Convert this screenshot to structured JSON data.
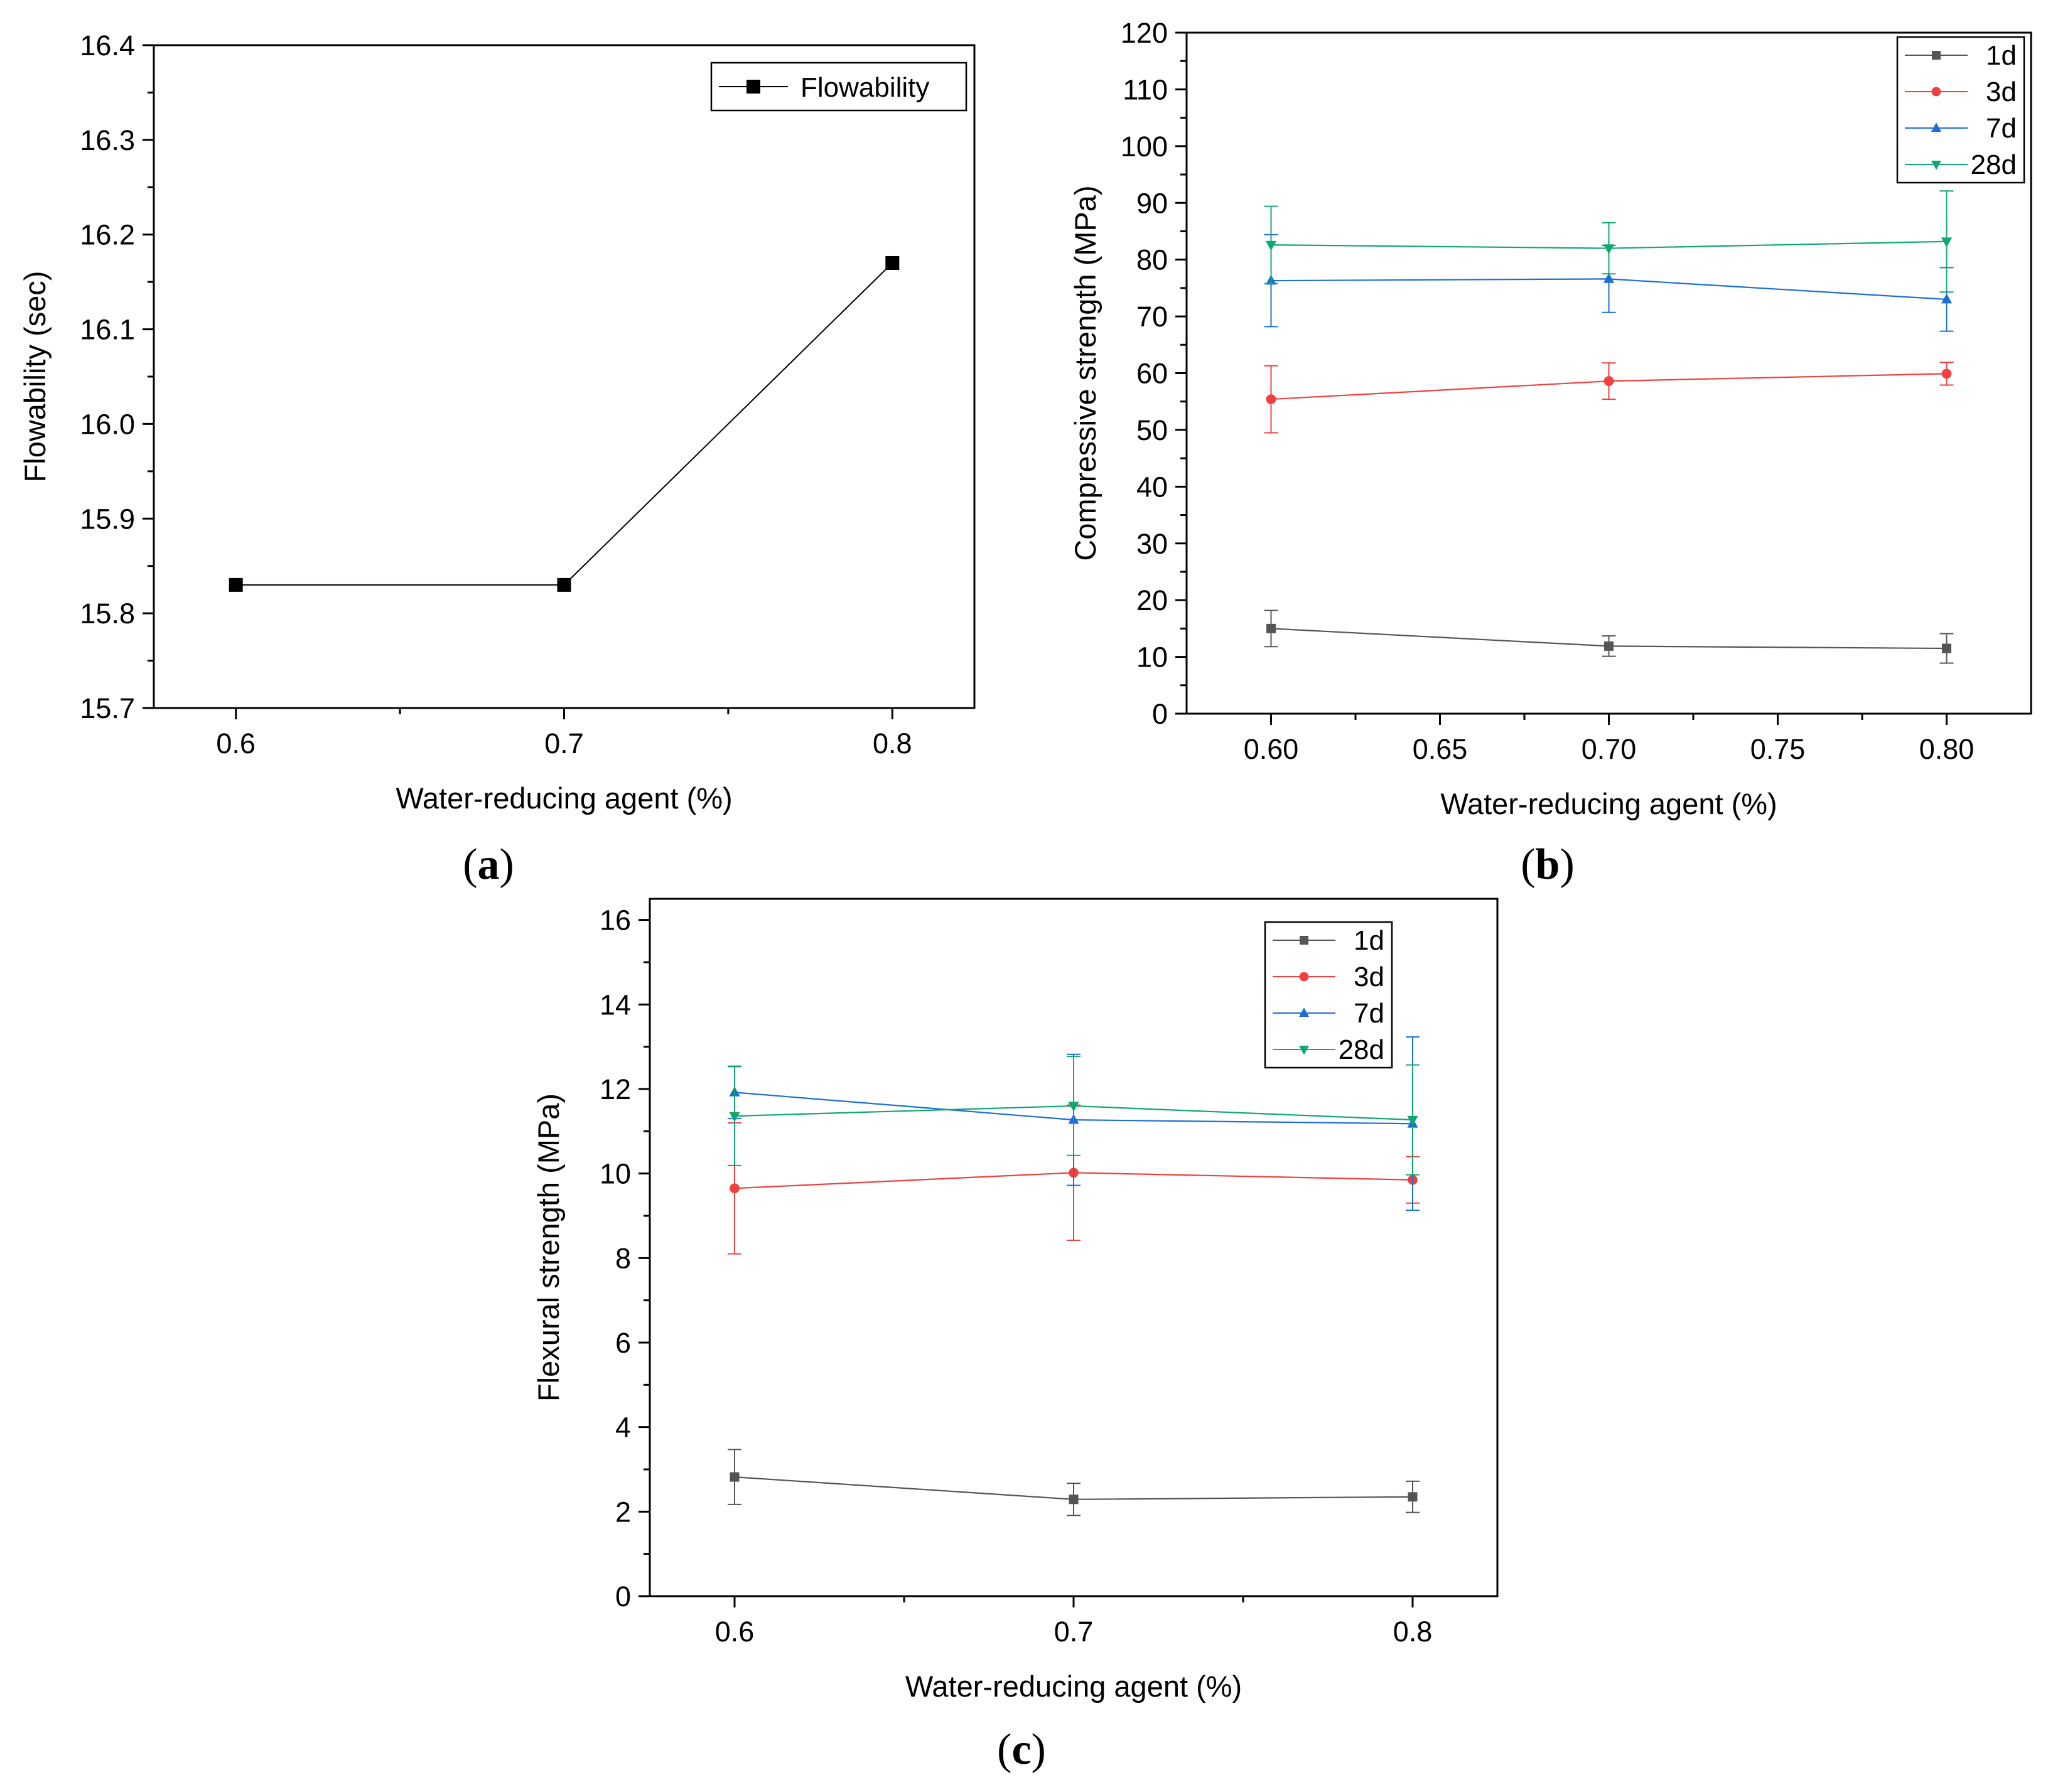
{
  "chart_data": [
    {
      "id": "a",
      "type": "line",
      "panel_label": "a",
      "xlabel": "Water-reducing agent (%)",
      "ylabel": "Flowability (sec)",
      "xlim": [
        0.575,
        0.825
      ],
      "ylim": [
        15.7,
        16.4
      ],
      "xticks": [
        0.6,
        0.7,
        0.8
      ],
      "xtick_labels": [
        "0.6",
        "0.7",
        "0.8"
      ],
      "xminor": [
        0.65,
        0.75
      ],
      "yticks": [
        15.7,
        15.8,
        15.9,
        16.0,
        16.1,
        16.2,
        16.3,
        16.4
      ],
      "ytick_labels": [
        "15.7",
        "15.8",
        "15.9",
        "16.0",
        "16.1",
        "16.2",
        "16.3",
        "16.4"
      ],
      "yminor": [
        15.75,
        15.85,
        15.95,
        16.05,
        16.15,
        16.25,
        16.35
      ],
      "legend": "top-right",
      "grid": false,
      "series": [
        {
          "name": "Flowability",
          "color": "#000000",
          "marker": "square",
          "x": [
            0.6,
            0.7,
            0.8
          ],
          "y": [
            15.83,
            15.83,
            16.17
          ]
        }
      ]
    },
    {
      "id": "b",
      "type": "line",
      "panel_label": "b",
      "xlabel": "Water-reducing agent (%)",
      "ylabel": "Compressive strength (MPa)",
      "xlim": [
        0.575,
        0.825
      ],
      "ylim": [
        0,
        120
      ],
      "xticks": [
        0.6,
        0.65,
        0.7,
        0.75,
        0.8
      ],
      "xtick_labels": [
        "0.60",
        "0.65",
        "0.70",
        "0.75",
        "0.80"
      ],
      "xminor": [
        0.625,
        0.675,
        0.725,
        0.775
      ],
      "yticks": [
        0,
        10,
        20,
        30,
        40,
        50,
        60,
        70,
        80,
        90,
        100,
        110,
        120
      ],
      "ytick_labels": [
        "0",
        "10",
        "20",
        "30",
        "40",
        "50",
        "60",
        "70",
        "80",
        "90",
        "100",
        "110",
        "120"
      ],
      "yminor": [
        5,
        15,
        25,
        35,
        45,
        55,
        65,
        75,
        85,
        95,
        105,
        115
      ],
      "legend": "top-right",
      "grid": false,
      "series": [
        {
          "name": "1d",
          "color": "#555555",
          "marker": "square",
          "x": [
            0.6,
            0.7,
            0.8
          ],
          "y": [
            15.0,
            11.9,
            11.5
          ],
          "err": [
            3.2,
            1.8,
            2.6
          ]
        },
        {
          "name": "3d",
          "color": "#f04040",
          "marker": "circle",
          "x": [
            0.6,
            0.7,
            0.8
          ],
          "y": [
            55.4,
            58.6,
            59.9
          ],
          "err": [
            5.9,
            3.2,
            2.0
          ]
        },
        {
          "name": "7d",
          "color": "#1b6fd4",
          "marker": "triangle-up",
          "x": [
            0.6,
            0.7,
            0.8
          ],
          "y": [
            76.3,
            76.6,
            73.0
          ],
          "err": [
            8.1,
            5.9,
            5.6
          ]
        },
        {
          "name": "28d",
          "color": "#10a870",
          "marker": "triangle-down",
          "x": [
            0.6,
            0.7,
            0.8
          ],
          "y": [
            82.6,
            82.0,
            83.2
          ],
          "err": [
            6.8,
            4.5,
            8.9
          ]
        }
      ]
    },
    {
      "id": "c",
      "type": "line",
      "panel_label": "c",
      "xlabel": "Water-reducing agent (%)",
      "ylabel": "Flexural strength (MPa)",
      "xlim": [
        0.575,
        0.825
      ],
      "ylim": [
        0,
        16.5
      ],
      "xticks": [
        0.6,
        0.7,
        0.8
      ],
      "xtick_labels": [
        "0.6",
        "0.7",
        "0.8"
      ],
      "xminor": [
        0.65,
        0.75
      ],
      "yticks": [
        0,
        2,
        4,
        6,
        8,
        10,
        12,
        14,
        16
      ],
      "ytick_labels": [
        "0",
        "2",
        "4",
        "6",
        "8",
        "10",
        "12",
        "14",
        "16"
      ],
      "yminor": [
        1,
        3,
        5,
        7,
        9,
        11,
        13,
        15
      ],
      "legend": "top-right",
      "grid": false,
      "series": [
        {
          "name": "1d",
          "color": "#555555",
          "marker": "square",
          "x": [
            0.6,
            0.7,
            0.8
          ],
          "y": [
            2.82,
            2.29,
            2.35
          ],
          "err": [
            0.65,
            0.38,
            0.37
          ]
        },
        {
          "name": "3d",
          "color": "#f04040",
          "marker": "circle",
          "x": [
            0.6,
            0.7,
            0.8
          ],
          "y": [
            9.65,
            10.02,
            9.85
          ],
          "err": [
            1.55,
            1.6,
            0.55
          ]
        },
        {
          "name": "7d",
          "color": "#1b6fd4",
          "marker": "triangle-up",
          "x": [
            0.6,
            0.7,
            0.8
          ],
          "y": [
            11.92,
            11.27,
            11.18
          ],
          "err": [
            0.62,
            1.55,
            2.05
          ]
        },
        {
          "name": "28d",
          "color": "#10a870",
          "marker": "triangle-down",
          "x": [
            0.6,
            0.7,
            0.8
          ],
          "y": [
            11.36,
            11.6,
            11.27
          ],
          "err": [
            1.17,
            1.17,
            1.3
          ]
        }
      ]
    }
  ]
}
